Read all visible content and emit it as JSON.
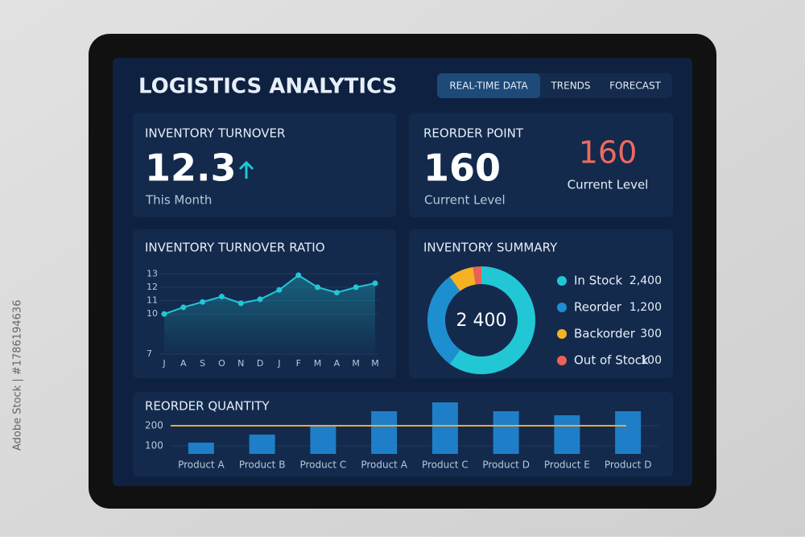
{
  "watermark": "Adobe Stock | #1786194636",
  "header": {
    "title": "LOGISTICS ANALYTICS",
    "tabs": [
      "REAL-TIME DATA",
      "TRENDS",
      "FORECAST"
    ]
  },
  "kpis": [
    {
      "title": "INVENTORY TURNOVER",
      "value": "12.3",
      "caption": "This Month"
    },
    {
      "title": "REORDER POINT",
      "value": "160",
      "caption": "Current Level",
      "alert_value": "160",
      "alert_caption": "Current Level"
    }
  ],
  "chart_data": [
    {
      "type": "line",
      "title": "INVENTORY TURNOVER RATIO",
      "categories": [
        "J",
        "A",
        "S",
        "O",
        "N",
        "D",
        "J",
        "F",
        "M",
        "A",
        "M",
        "M"
      ],
      "values": [
        10.0,
        10.5,
        10.9,
        11.3,
        10.8,
        11.1,
        11.8,
        12.9,
        12.0,
        11.6,
        12.0,
        12.3
      ],
      "color": "#22c7d6",
      "ylim": [
        7,
        13.5
      ],
      "yticks": [
        7,
        10,
        11,
        12,
        13
      ]
    },
    {
      "type": "donut",
      "title": "INVENTORY SUMMARY",
      "center_label": "2 400",
      "categories": [
        "In Stock",
        "Reorder",
        "Backorder",
        "Out of Stock"
      ],
      "values": [
        2400,
        1200,
        300,
        100
      ],
      "value_labels": [
        "2,400",
        "1,200",
        "300",
        "100"
      ],
      "colors": [
        "#22c7d6",
        "#1d8fd1",
        "#f5b324",
        "#e8625a"
      ]
    },
    {
      "type": "bar",
      "title": "REORDER QUANTITY",
      "categories": [
        "Product A",
        "Product B",
        "Product C",
        "Product A",
        "Product C",
        "Product D",
        "Product E",
        "Product D"
      ],
      "values": [
        116,
        156,
        204,
        272,
        316,
        272,
        252,
        272
      ],
      "color": "#1e7fc8",
      "ylim": [
        60,
        340
      ],
      "yticks": [
        100,
        200
      ],
      "reference_line": 200,
      "reference_color": "#e9a93a"
    }
  ]
}
